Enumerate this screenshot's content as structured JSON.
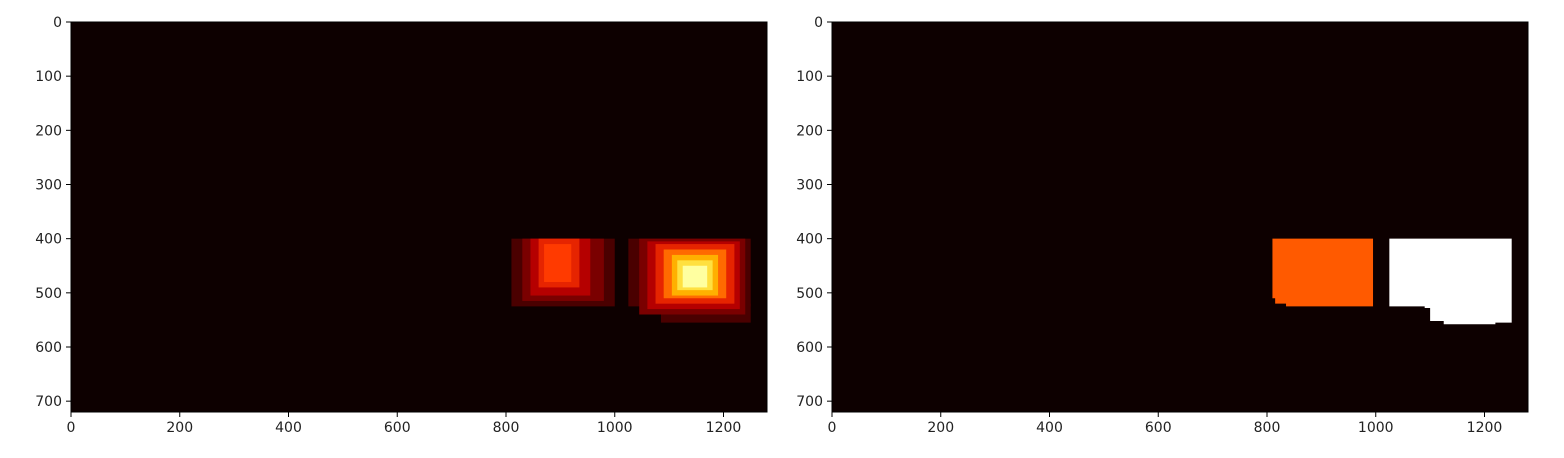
{
  "chart_data": [
    {
      "type": "heatmap",
      "colormap": "hot",
      "background_color": "#0d0000",
      "xlim": [
        0,
        1280
      ],
      "ylim": [
        720,
        0
      ],
      "x_ticks": [
        0,
        200,
        400,
        600,
        800,
        1000,
        1200
      ],
      "y_ticks": [
        0,
        100,
        200,
        300,
        400,
        500,
        600,
        700
      ],
      "x_tick_labels": [
        "0",
        "200",
        "400",
        "600",
        "800",
        "1000",
        "1200"
      ],
      "y_tick_labels": [
        "0",
        "100",
        "200",
        "300",
        "400",
        "500",
        "600",
        "700"
      ],
      "cells": [
        {
          "x0": 810,
          "x1": 1000,
          "y0": 400,
          "y1": 525,
          "color": "#4a0000"
        },
        {
          "x0": 830,
          "x1": 980,
          "y0": 400,
          "y1": 515,
          "color": "#7a0000"
        },
        {
          "x0": 845,
          "x1": 955,
          "y0": 400,
          "y1": 505,
          "color": "#b50000"
        },
        {
          "x0": 860,
          "x1": 935,
          "y0": 400,
          "y1": 490,
          "color": "#e62400"
        },
        {
          "x0": 870,
          "x1": 920,
          "y0": 410,
          "y1": 480,
          "color": "#ff3a00"
        },
        {
          "x0": 1025,
          "x1": 1250,
          "y0": 400,
          "y1": 525,
          "color": "#4a0000"
        },
        {
          "x0": 1085,
          "x1": 1250,
          "y0": 520,
          "y1": 555,
          "color": "#4a0000"
        },
        {
          "x0": 1045,
          "x1": 1240,
          "y0": 400,
          "y1": 540,
          "color": "#7a0000"
        },
        {
          "x0": 1060,
          "x1": 1230,
          "y0": 405,
          "y1": 530,
          "color": "#b50000"
        },
        {
          "x0": 1075,
          "x1": 1220,
          "y0": 410,
          "y1": 520,
          "color": "#e62400"
        },
        {
          "x0": 1090,
          "x1": 1205,
          "y0": 420,
          "y1": 510,
          "color": "#ff6a00"
        },
        {
          "x0": 1105,
          "x1": 1190,
          "y0": 430,
          "y1": 505,
          "color": "#ffb000"
        },
        {
          "x0": 1115,
          "x1": 1180,
          "y0": 440,
          "y1": 495,
          "color": "#ffe040"
        },
        {
          "x0": 1125,
          "x1": 1170,
          "y0": 450,
          "y1": 490,
          "color": "#ffffa0"
        }
      ]
    },
    {
      "type": "heatmap",
      "colormap": "hot",
      "background_color": "#0d0000",
      "xlim": [
        0,
        1280
      ],
      "ylim": [
        720,
        0
      ],
      "x_ticks": [
        0,
        200,
        400,
        600,
        800,
        1000,
        1200
      ],
      "y_ticks": [
        0,
        100,
        200,
        300,
        400,
        500,
        600,
        700
      ],
      "x_tick_labels": [
        "0",
        "200",
        "400",
        "600",
        "800",
        "1000",
        "1200"
      ],
      "y_tick_labels": [
        "0",
        "100",
        "200",
        "300",
        "400",
        "500",
        "600",
        "700"
      ],
      "regions": [
        {
          "label_value": 1,
          "color": "#ff5a00",
          "outline": [
            [
              810,
              400
            ],
            [
              995,
              400
            ],
            [
              995,
              525
            ],
            [
              835,
              525
            ],
            [
              835,
              520
            ],
            [
              815,
              520
            ],
            [
              815,
              510
            ],
            [
              810,
              510
            ]
          ]
        },
        {
          "label_value": 2,
          "color": "#ffffff",
          "outline": [
            [
              1025,
              400
            ],
            [
              1250,
              400
            ],
            [
              1250,
              555
            ],
            [
              1220,
              555
            ],
            [
              1220,
              558
            ],
            [
              1125,
              558
            ],
            [
              1125,
              552
            ],
            [
              1100,
              552
            ],
            [
              1100,
              528
            ],
            [
              1090,
              528
            ],
            [
              1090,
              525
            ],
            [
              1025,
              525
            ]
          ]
        }
      ]
    }
  ]
}
